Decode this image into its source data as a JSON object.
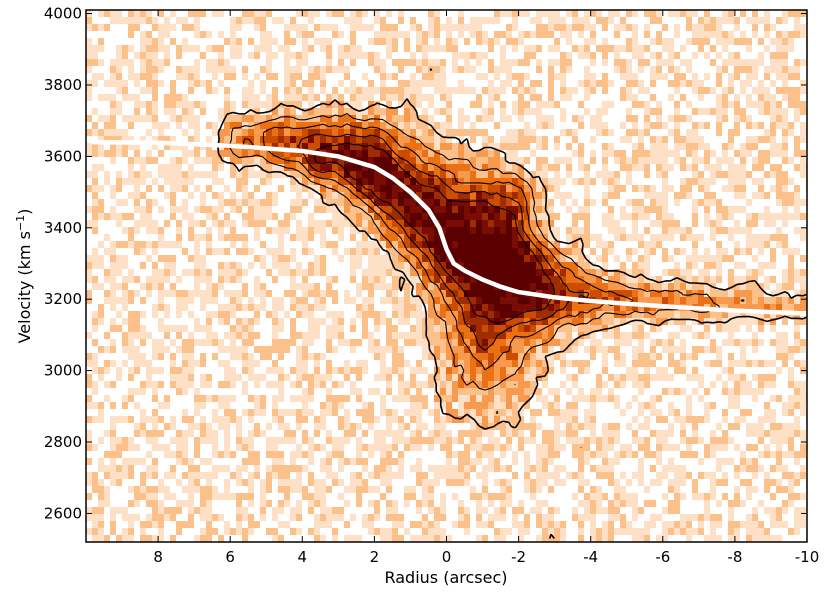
{
  "chart_data": {
    "type": "heatmap",
    "subtype": "position-velocity diagram with contours and rotation curve",
    "title": "",
    "xlabel": "Radius (arcsec)",
    "ylabel_main": "Velocity (km s",
    "ylabel_sup": "−1",
    "ylabel_end": ")",
    "xlim": [
      10,
      -10
    ],
    "ylim": [
      2520,
      4010
    ],
    "x_inverted": true,
    "x_ticks": [
      8,
      6,
      4,
      2,
      0,
      -2,
      -4,
      -6,
      -8,
      -10
    ],
    "x_tick_labels": [
      "8",
      "6",
      "4",
      "2",
      "0",
      "-2",
      "-4",
      "-6",
      "-8",
      "-10"
    ],
    "y_ticks": [
      2600,
      2800,
      3000,
      3200,
      3400,
      3600,
      3800,
      4000
    ],
    "y_tick_labels": [
      "2600",
      "2800",
      "3000",
      "3200",
      "3400",
      "3600",
      "3800",
      "4000"
    ],
    "colormap": [
      "#ffffff",
      "#fde0c5",
      "#fcc08a",
      "#f89a4e",
      "#ec7014",
      "#cc4c02",
      "#a02d02",
      "#7a0d03",
      "#5a0000"
    ],
    "grid": false,
    "rotation_curve": {
      "color": "#ffffff",
      "x": [
        9.8,
        8,
        6,
        4,
        3,
        2,
        1.5,
        1,
        0.5,
        0.2,
        0,
        -0.2,
        -0.5,
        -1,
        -1.5,
        -2,
        -3,
        -4,
        -6,
        -8,
        -10
      ],
      "y": [
        3640,
        3638,
        3630,
        3615,
        3600,
        3570,
        3540,
        3500,
        3450,
        3400,
        3340,
        3300,
        3280,
        3255,
        3235,
        3220,
        3205,
        3195,
        3180,
        3168,
        3160
      ]
    },
    "emission_ridge": {
      "x": [
        6.0,
        4.5,
        3.0,
        2.0,
        1.0,
        0.0,
        -1.0,
        -2.0,
        -3.0,
        -4.5,
        -6.0,
        -8.0,
        -9.5
      ],
      "v": [
        3650,
        3640,
        3600,
        3560,
        3480,
        3380,
        3320,
        3280,
        3220,
        3200,
        3190,
        3190,
        3180
      ],
      "peak": [
        0.35,
        0.55,
        0.8,
        0.95,
        0.9,
        0.95,
        1.0,
        1.0,
        0.7,
        0.5,
        0.4,
        0.3,
        0.2
      ],
      "width_v": [
        40,
        50,
        70,
        90,
        110,
        130,
        140,
        120,
        80,
        40,
        35,
        30,
        30
      ]
    },
    "contour_levels": [
      0.2,
      0.35,
      0.5,
      0.65,
      0.8
    ]
  }
}
